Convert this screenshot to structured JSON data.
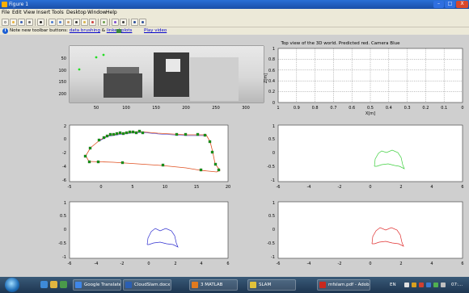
{
  "window": {
    "title": "Figure 1",
    "min_label": "–",
    "max_label": "□",
    "close_label": "X"
  },
  "menu": [
    "File",
    "Edit",
    "View",
    "Insert",
    "Tools",
    "Desktop",
    "Window",
    "Help"
  ],
  "toolbar": {
    "icons": [
      "new-figure-icon",
      "open-file-icon",
      "save-figure-icon",
      "print-figure-icon",
      "edit-plot-icon",
      "zoom-in-icon",
      "zoom-out-icon",
      "pan-icon",
      "rotate-3d-icon",
      "data-cursor-icon",
      "brush-icon",
      "link-plot-icon",
      "insert-colorbar-icon",
      "insert-legend-icon",
      "hide-plot-tools-icon",
      "show-plot-tools-icon"
    ]
  },
  "notice": {
    "prefix": "Note new toolbar buttons: ",
    "link1": "data brushing",
    "amp": " & ",
    "link2": "linked plots",
    "link3": "Play video"
  },
  "plots": {
    "camera_image": {
      "yticks": [
        "50",
        "100",
        "150",
        "200"
      ],
      "xticks": [
        "50",
        "100",
        "150",
        "200",
        "250",
        "300"
      ]
    },
    "top_view": {
      "title": "Top view of the 3D world. Predicted red. Camera Blue",
      "ylabel": "Z[m]",
      "xlabel": "X[m]",
      "yticks": [
        "0",
        "0.2",
        "0.4",
        "0.6",
        "0.8",
        "1"
      ],
      "xticks": [
        "1",
        "0.9",
        "0.8",
        "0.7",
        "0.6",
        "0.5",
        "0.4",
        "0.3",
        "0.2",
        "0.1",
        "0"
      ]
    },
    "trajectory": {
      "yticks": [
        "2",
        "0",
        "-2",
        "-4",
        "-6"
      ],
      "xticks": [
        "-5",
        "0",
        "5",
        "10",
        "15",
        "20"
      ]
    },
    "green_panel": {
      "yticks": [
        "1",
        "0.5",
        "0",
        "-0.5",
        "-1"
      ],
      "xticks": [
        "-6",
        "-4",
        "-2",
        "0",
        "2",
        "4",
        "6"
      ]
    },
    "blue_panel": {
      "yticks": [
        "1",
        "0.5",
        "0",
        "-0.5",
        "-1"
      ],
      "xticks": [
        "-6",
        "-4",
        "-2",
        "0",
        "2",
        "4",
        "6"
      ]
    },
    "red_panel": {
      "yticks": [
        "1",
        "0.5",
        "0",
        "-0.5",
        "-1"
      ],
      "xticks": [
        "-6",
        "-4",
        "-2",
        "0",
        "2",
        "4",
        "6"
      ]
    }
  },
  "taskbar": {
    "items": [
      {
        "label": "Google Translate - ...",
        "color": "#3f86e8"
      },
      {
        "label": "CloudSlam.docx - ...",
        "color": "#2b5fb3"
      },
      {
        "label": "3 MATLAB",
        "color": "#e07a1f"
      },
      {
        "label": "SLAM",
        "color": "#e2c23a"
      },
      {
        "label": "mfslam.pdf - Adob...",
        "color": "#c8281e"
      }
    ],
    "lang": "EN",
    "clock": "07:..."
  }
}
